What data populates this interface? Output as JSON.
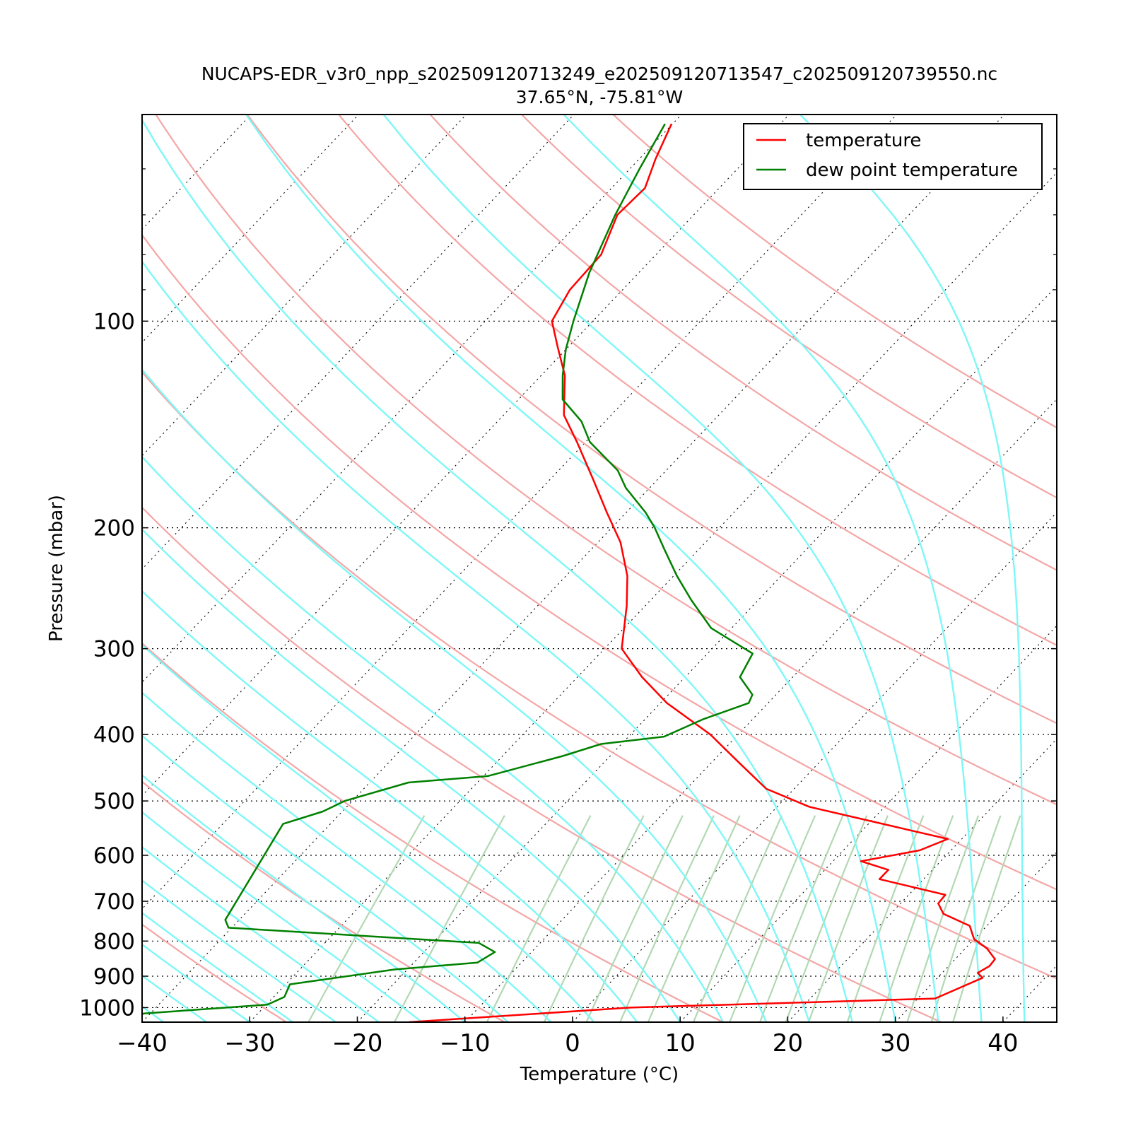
{
  "chart_data": {
    "type": "line",
    "subtype": "skew-T log-P diagram",
    "title": "NUCAPS-EDR_v3r0_npp_s202509120713249_e202509120713547_c202509120739550.nc",
    "subtitle": "37.65°N, -75.81°W",
    "xlabel": "Temperature (°C)",
    "ylabel": "Pressure (mbar)",
    "xlim": [
      -40,
      45
    ],
    "ylim": [
      1050,
      50
    ],
    "y_scale": "log",
    "grid": true,
    "legend_position": "top-right",
    "x_ticks": [
      -40,
      -30,
      -20,
      -10,
      0,
      10,
      20,
      30,
      40
    ],
    "x_tick_labels": [
      "−40",
      "−30",
      "−20",
      "−10",
      "0",
      "10",
      "20",
      "30",
      "40"
    ],
    "y_ticks": [
      100,
      200,
      300,
      400,
      500,
      600,
      700,
      800,
      900,
      1000
    ],
    "y_tick_labels": [
      "100",
      "200",
      "300",
      "400",
      "500",
      "600",
      "700",
      "800",
      "900",
      "1000"
    ],
    "background_lines": {
      "isotherms": "dotted black",
      "dry_adiabats": "light red",
      "moist_adiabats": "cyan",
      "mixing_ratio_lines": "light green"
    },
    "series": [
      {
        "name": "temperature",
        "color": "#ff0000",
        "points": [
          [
            1050,
            -15.2
          ],
          [
            1000,
            4.1
          ],
          [
            970,
            31.6
          ],
          [
            905,
            34.2
          ],
          [
            890,
            33.3
          ],
          [
            870,
            33.8
          ],
          [
            850,
            33.7
          ],
          [
            820,
            32.0
          ],
          [
            795,
            30.0
          ],
          [
            760,
            28.4
          ],
          [
            730,
            24.9
          ],
          [
            705,
            23.5
          ],
          [
            685,
            23.4
          ],
          [
            650,
            15.9
          ],
          [
            630,
            15.9
          ],
          [
            612,
            12.6
          ],
          [
            590,
            17.1
          ],
          [
            568,
            18.7
          ],
          [
            550,
            14.0
          ],
          [
            510,
            3.0
          ],
          [
            480,
            -2.6
          ],
          [
            440,
            -7.4
          ],
          [
            400,
            -12.6
          ],
          [
            360,
            -19.4
          ],
          [
            330,
            -24.0
          ],
          [
            300,
            -28.4
          ],
          [
            260,
            -31.7
          ],
          [
            235,
            -34.3
          ],
          [
            210,
            -37.9
          ],
          [
            190,
            -41.8
          ],
          [
            170,
            -46.0
          ],
          [
            150,
            -50.8
          ],
          [
            137,
            -54.4
          ],
          [
            120,
            -57.8
          ],
          [
            109,
            -61.0
          ],
          [
            100,
            -63.8
          ],
          [
            90,
            -64.9
          ],
          [
            80,
            -65.1
          ],
          [
            70,
            -67.1
          ],
          [
            64,
            -66.9
          ],
          [
            58,
            -68.5
          ],
          [
            51.6,
            -70.1
          ]
        ]
      },
      {
        "name": "dew point temperature",
        "color": "#008000",
        "points": [
          [
            1050,
            -41.9
          ],
          [
            1020,
            -40.6
          ],
          [
            990,
            -29.9
          ],
          [
            965,
            -29.0
          ],
          [
            925,
            -29.6
          ],
          [
            880,
            -21.2
          ],
          [
            860,
            -14.1
          ],
          [
            830,
            -13.4
          ],
          [
            805,
            -15.7
          ],
          [
            765,
            -40.3
          ],
          [
            745,
            -41.3
          ],
          [
            540,
            -44.4
          ],
          [
            518,
            -41.8
          ],
          [
            500,
            -40.7
          ],
          [
            470,
            -36.4
          ],
          [
            460,
            -29.6
          ],
          [
            430,
            -24.4
          ],
          [
            413,
            -21.9
          ],
          [
            403,
            -16.7
          ],
          [
            380,
            -14.6
          ],
          [
            360,
            -11.8
          ],
          [
            350,
            -12.2
          ],
          [
            330,
            -14.9
          ],
          [
            305,
            -15.8
          ],
          [
            280,
            -21.9
          ],
          [
            255,
            -26.2
          ],
          [
            235,
            -29.7
          ],
          [
            215,
            -33.2
          ],
          [
            200,
            -36.0
          ],
          [
            190,
            -38.2
          ],
          [
            175,
            -42.2
          ],
          [
            165,
            -44.5
          ],
          [
            150,
            -49.6
          ],
          [
            140,
            -52.2
          ],
          [
            130,
            -55.9
          ],
          [
            120,
            -58.0
          ],
          [
            110,
            -60.0
          ],
          [
            100,
            -61.8
          ],
          [
            85,
            -64.6
          ],
          [
            70,
            -67.3
          ],
          [
            60,
            -69.1
          ],
          [
            51.6,
            -70.7
          ]
        ]
      }
    ]
  }
}
